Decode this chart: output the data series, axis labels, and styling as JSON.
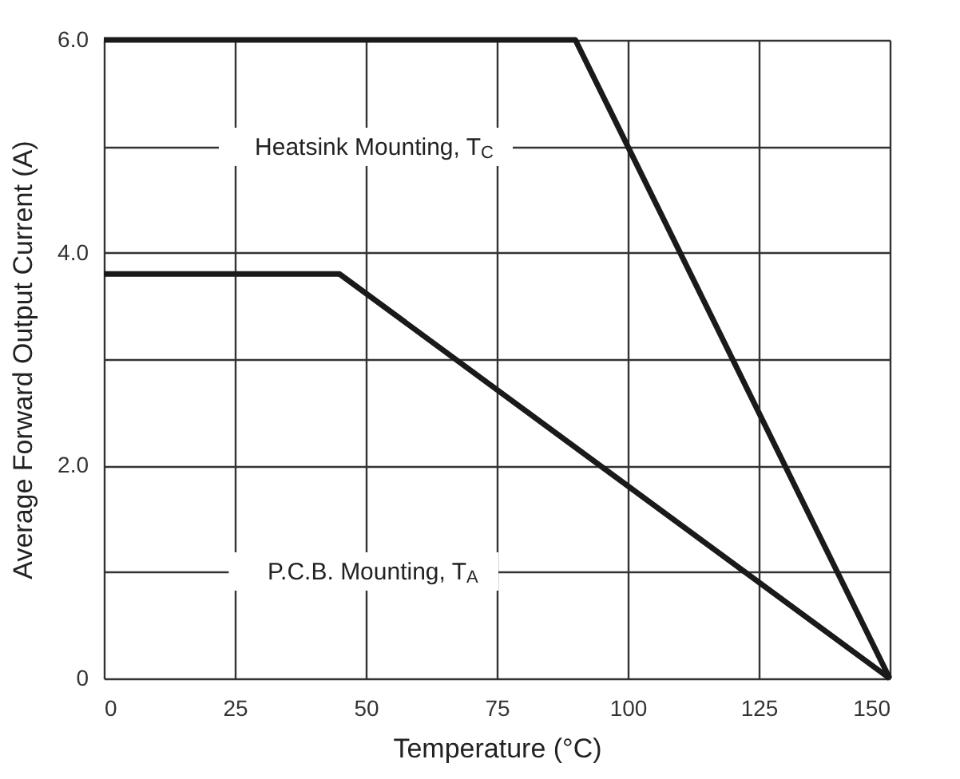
{
  "chart_data": {
    "type": "line",
    "xlabel": "Temperature (°C)",
    "ylabel": "Average Forward Output Current (A)",
    "series": [
      {
        "color": "#1a1a1a",
        "x": [
          0,
          90,
          150
        ],
        "values": [
          6.0,
          6.0,
          0
        ]
      },
      {
        "color": "#1a1a1a",
        "x": [
          0,
          45,
          150
        ],
        "values": [
          3.8,
          3.8,
          0
        ]
      }
    ],
    "annotations": [
      "Heatsink Mounting, T$_{C}$",
      "P.C.B. Mounting, T$_{A}$"
    ],
    "xlim": [
      0,
      150
    ],
    "xticks": [
      0,
      25,
      50,
      75,
      100,
      125,
      150
    ],
    "ylim": [
      0,
      6
    ],
    "yticks": [
      0,
      {
        "value": 1,
        "label": null
      },
      {
        "value": 2,
        "label": "2.0"
      },
      {
        "value": 3,
        "label": null
      },
      {
        "value": 4,
        "label": "4.0"
      },
      {
        "value": 5,
        "label": null
      },
      {
        "value": 6,
        "label": "6.0"
      }
    ],
    "grid": true,
    "line_style": "solid",
    "marker": "none"
  }
}
